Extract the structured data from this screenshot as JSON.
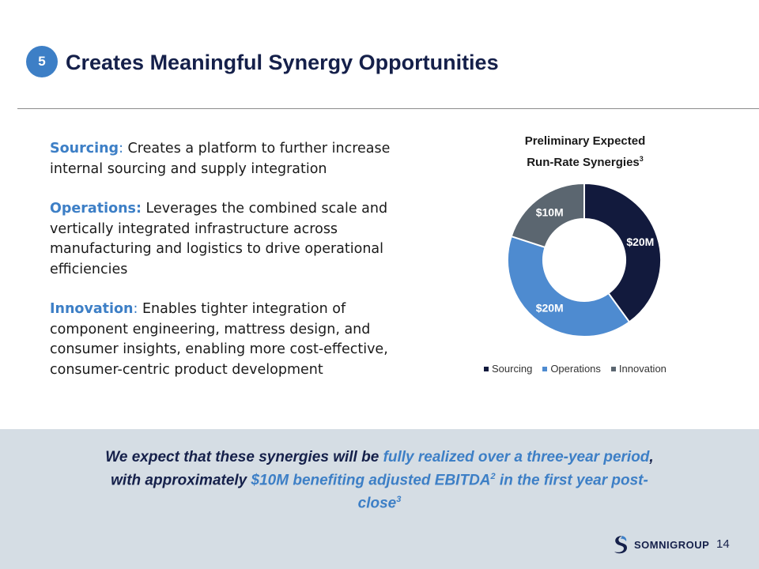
{
  "header": {
    "badge": "5",
    "title": "Creates Meaningful Synergy Opportunities"
  },
  "bullets": [
    {
      "lead": "Sourcing",
      "sep": ":",
      "text": " Creates a platform to further increase internal sourcing and supply integration"
    },
    {
      "lead": "Operations:",
      "sep": "",
      "text": " Leverages the combined scale and vertically integrated infrastructure across manufacturing and logistics to drive operational efficiencies"
    },
    {
      "lead": "Innovation",
      "sep": ":",
      "text": " Enables tighter integration of component engineering, mattress design, and consumer insights, enabling more cost-effective, consumer-centric product development"
    }
  ],
  "chart_data": {
    "type": "pie",
    "variant": "donut",
    "title_line1": "Preliminary Expected",
    "title_line2": "Run-Rate Synergies",
    "title_sup": "3",
    "categories": [
      "Sourcing",
      "Operations",
      "Innovation"
    ],
    "values": [
      20,
      20,
      10
    ],
    "unit": "$M",
    "labels": [
      "$20M",
      "$20M",
      "$10M"
    ],
    "colors": [
      "#121a3d",
      "#4e8bd0",
      "#5b6670"
    ],
    "legend_position": "bottom"
  },
  "callout": {
    "p1": "We expect that these synergies will be ",
    "h1": "fully realized over a three-year period",
    "p2": ", with approximately ",
    "h2": "$10M benefiting adjusted EBITDA",
    "sup1": "2",
    "h3": " in the first year post-close",
    "sup2": "3"
  },
  "footer": {
    "logo_text": "SOMNIGROUP",
    "page_number": "14"
  }
}
